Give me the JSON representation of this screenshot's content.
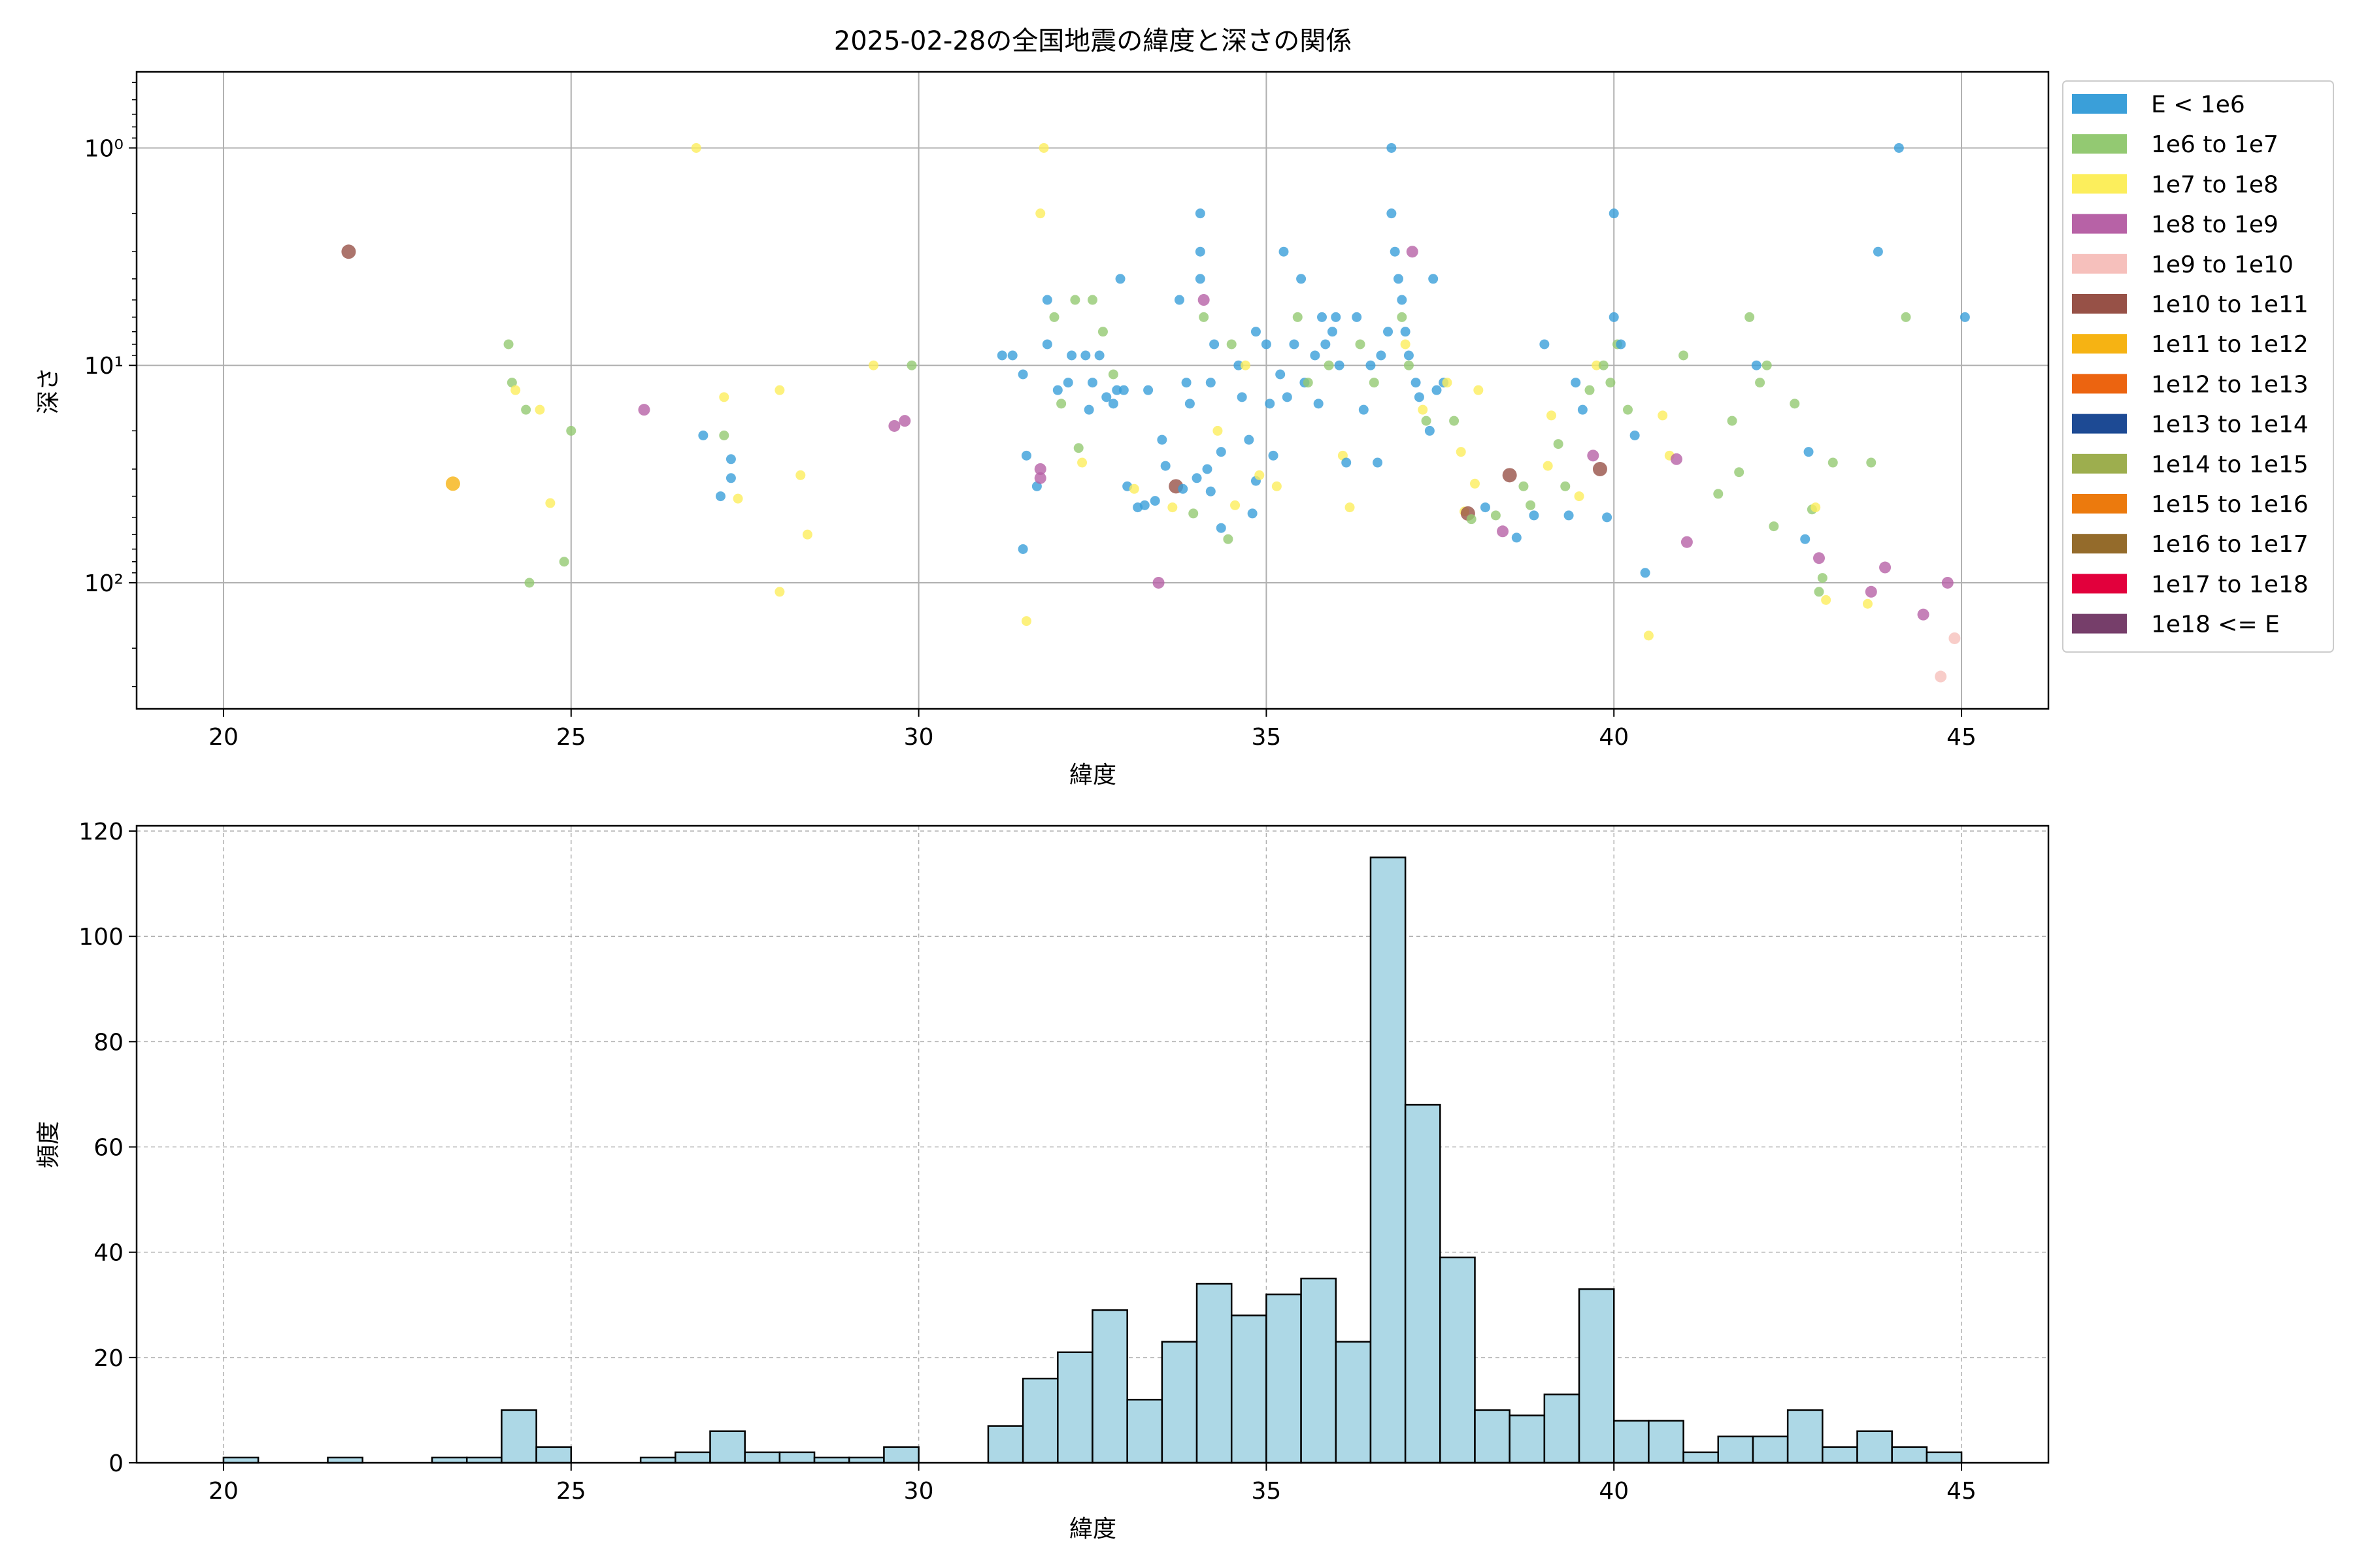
{
  "chart_data": [
    {
      "type": "scatter",
      "title": "2025-02-28の全国地震の緯度と深さの関係",
      "xlabel": "緯度",
      "ylabel": "深さ",
      "xlim": [
        18.75,
        46.25
      ],
      "ylim_log10": [
        -0.35,
        2.58
      ],
      "y_axis": "log, inverted",
      "x_ticks": [
        "20",
        "25",
        "30",
        "35",
        "40",
        "45"
      ],
      "x_tick_values": [
        20,
        25,
        30,
        35,
        40,
        45
      ],
      "y_ticks": [
        "10⁰",
        "10¹",
        "10²"
      ],
      "y_tick_values": [
        1,
        10,
        100
      ],
      "grid": true,
      "legend_position": "outside-right",
      "legend": [
        {
          "label": "E < 1e6",
          "color": "#3a9fd9"
        },
        {
          "label": "1e6 to 1e7",
          "color": "#93c972"
        },
        {
          "label": "1e7 to 1e8",
          "color": "#fcee5c"
        },
        {
          "label": "1e8 to 1e9",
          "color": "#b762a6"
        },
        {
          "label": "1e9 to 1e10",
          "color": "#f6c0bc"
        },
        {
          "label": "1e10 to 1e11",
          "color": "#975147"
        },
        {
          "label": "1e11 to 1e12",
          "color": "#f6b313"
        },
        {
          "label": "1e12 to 1e13",
          "color": "#ec6410"
        },
        {
          "label": "1e13 to 1e14",
          "color": "#1d4a94"
        },
        {
          "label": "1e14 to 1e15",
          "color": "#9dae4e"
        },
        {
          "label": "1e15 to 1e16",
          "color": "#ec7a0d"
        },
        {
          "label": "1e16 to 1e17",
          "color": "#946b2b"
        },
        {
          "label": "1e17 to 1e18",
          "color": "#e2003c"
        },
        {
          "label": "1e18 <= E",
          "color": "#763e6a"
        }
      ],
      "points": [
        [
          21.8,
          3,
          5
        ],
        [
          23.3,
          35,
          6
        ],
        [
          24.1,
          8,
          1
        ],
        [
          24.15,
          12,
          1
        ],
        [
          24.2,
          13,
          2
        ],
        [
          24.35,
          16,
          1
        ],
        [
          24.55,
          16,
          2
        ],
        [
          24.7,
          43,
          2
        ],
        [
          24.9,
          80,
          1
        ],
        [
          24.4,
          100,
          1
        ],
        [
          25.0,
          20,
          1
        ],
        [
          26.05,
          16,
          3
        ],
        [
          26.8,
          1,
          2
        ],
        [
          26.9,
          21,
          0
        ],
        [
          27.2,
          14,
          2
        ],
        [
          27.2,
          21,
          1
        ],
        [
          27.3,
          27,
          0
        ],
        [
          27.3,
          33,
          0
        ],
        [
          27.15,
          40,
          0
        ],
        [
          27.4,
          41,
          2
        ],
        [
          28.0,
          13,
          2
        ],
        [
          28.0,
          110,
          2
        ],
        [
          28.3,
          32,
          2
        ],
        [
          28.4,
          60,
          2
        ],
        [
          29.35,
          10,
          2
        ],
        [
          29.65,
          19,
          3
        ],
        [
          29.8,
          18,
          3
        ],
        [
          29.9,
          10,
          1
        ],
        [
          31.2,
          9,
          0
        ],
        [
          31.35,
          9,
          0
        ],
        [
          31.5,
          11,
          0
        ],
        [
          31.5,
          70,
          0
        ],
        [
          31.55,
          26,
          0
        ],
        [
          31.55,
          150,
          2
        ],
        [
          31.7,
          36,
          0
        ],
        [
          31.75,
          30,
          3
        ],
        [
          31.75,
          33,
          3
        ],
        [
          31.8,
          1,
          2
        ],
        [
          31.75,
          2,
          2
        ],
        [
          31.85,
          5,
          0
        ],
        [
          31.85,
          8,
          0
        ],
        [
          31.95,
          6,
          1
        ],
        [
          32.0,
          13,
          0
        ],
        [
          32.05,
          15,
          1
        ],
        [
          32.15,
          12,
          0
        ],
        [
          32.2,
          9,
          0
        ],
        [
          32.25,
          5,
          1
        ],
        [
          32.3,
          24,
          1
        ],
        [
          32.35,
          28,
          2
        ],
        [
          32.4,
          9,
          0
        ],
        [
          32.45,
          16,
          0
        ],
        [
          32.5,
          12,
          0
        ],
        [
          32.5,
          5,
          1
        ],
        [
          32.6,
          9,
          0
        ],
        [
          32.65,
          7,
          1
        ],
        [
          32.7,
          14,
          0
        ],
        [
          32.8,
          15,
          0
        ],
        [
          32.8,
          11,
          1
        ],
        [
          32.85,
          13,
          0
        ],
        [
          32.9,
          4,
          0
        ],
        [
          32.95,
          13,
          0
        ],
        [
          33.0,
          36,
          0
        ],
        [
          33.1,
          37,
          2
        ],
        [
          33.15,
          45,
          0
        ],
        [
          33.25,
          44,
          0
        ],
        [
          33.3,
          13,
          0
        ],
        [
          33.4,
          42,
          0
        ],
        [
          33.45,
          100,
          3
        ],
        [
          33.5,
          22,
          0
        ],
        [
          33.55,
          29,
          0
        ],
        [
          33.65,
          45,
          2
        ],
        [
          33.7,
          36,
          5
        ],
        [
          33.75,
          5,
          0
        ],
        [
          33.8,
          37,
          0
        ],
        [
          33.85,
          12,
          0
        ],
        [
          33.9,
          15,
          0
        ],
        [
          33.95,
          48,
          1
        ],
        [
          34.0,
          33,
          0
        ],
        [
          34.05,
          2,
          0
        ],
        [
          34.05,
          3,
          0
        ],
        [
          34.05,
          4,
          0
        ],
        [
          34.1,
          5,
          3
        ],
        [
          34.1,
          6,
          1
        ],
        [
          34.15,
          30,
          0
        ],
        [
          34.2,
          12,
          0
        ],
        [
          34.2,
          38,
          0
        ],
        [
          34.25,
          8,
          0
        ],
        [
          34.3,
          20,
          2
        ],
        [
          34.35,
          25,
          0
        ],
        [
          34.35,
          56,
          0
        ],
        [
          34.45,
          63,
          1
        ],
        [
          34.5,
          8,
          1
        ],
        [
          34.55,
          44,
          2
        ],
        [
          34.6,
          10,
          0
        ],
        [
          34.65,
          14,
          0
        ],
        [
          34.7,
          10,
          2
        ],
        [
          34.75,
          22,
          0
        ],
        [
          34.8,
          48,
          0
        ],
        [
          34.85,
          34,
          0
        ],
        [
          34.85,
          7,
          0
        ],
        [
          34.9,
          32,
          2
        ],
        [
          35.0,
          8,
          0
        ],
        [
          35.05,
          15,
          0
        ],
        [
          35.1,
          26,
          0
        ],
        [
          35.15,
          36,
          2
        ],
        [
          35.2,
          11,
          0
        ],
        [
          35.25,
          3,
          0
        ],
        [
          35.3,
          14,
          0
        ],
        [
          35.4,
          8,
          0
        ],
        [
          35.45,
          6,
          1
        ],
        [
          35.5,
          4,
          0
        ],
        [
          35.55,
          12,
          0
        ],
        [
          35.6,
          12,
          1
        ],
        [
          35.7,
          9,
          0
        ],
        [
          35.75,
          15,
          0
        ],
        [
          35.8,
          6,
          0
        ],
        [
          35.85,
          8,
          0
        ],
        [
          35.9,
          10,
          1
        ],
        [
          35.95,
          7,
          0
        ],
        [
          36.0,
          6,
          0
        ],
        [
          36.05,
          10,
          0
        ],
        [
          36.1,
          26,
          2
        ],
        [
          36.15,
          28,
          0
        ],
        [
          36.2,
          45,
          2
        ],
        [
          36.3,
          6,
          0
        ],
        [
          36.35,
          8,
          1
        ],
        [
          36.4,
          16,
          0
        ],
        [
          36.5,
          10,
          0
        ],
        [
          36.55,
          12,
          1
        ],
        [
          36.6,
          28,
          0
        ],
        [
          36.65,
          9,
          0
        ],
        [
          36.75,
          7,
          0
        ],
        [
          36.8,
          1,
          0
        ],
        [
          36.8,
          2,
          0
        ],
        [
          36.85,
          3,
          0
        ],
        [
          36.9,
          4,
          0
        ],
        [
          36.95,
          5,
          0
        ],
        [
          36.95,
          6,
          1
        ],
        [
          37.0,
          7,
          0
        ],
        [
          37.0,
          8,
          2
        ],
        [
          37.05,
          9,
          0
        ],
        [
          37.05,
          10,
          1
        ],
        [
          37.1,
          3,
          3
        ],
        [
          37.15,
          12,
          0
        ],
        [
          37.2,
          14,
          0
        ],
        [
          37.25,
          16,
          2
        ],
        [
          37.3,
          18,
          1
        ],
        [
          37.35,
          20,
          0
        ],
        [
          37.4,
          4,
          0
        ],
        [
          37.45,
          13,
          0
        ],
        [
          37.55,
          12,
          0
        ],
        [
          37.6,
          12,
          2
        ],
        [
          37.7,
          18,
          1
        ],
        [
          37.8,
          25,
          2
        ],
        [
          37.85,
          47,
          2
        ],
        [
          37.9,
          48,
          5
        ],
        [
          37.95,
          51,
          1
        ],
        [
          38.0,
          35,
          2
        ],
        [
          38.05,
          13,
          2
        ],
        [
          38.15,
          45,
          0
        ],
        [
          38.3,
          49,
          1
        ],
        [
          38.4,
          58,
          3
        ],
        [
          38.5,
          32,
          5
        ],
        [
          38.6,
          62,
          0
        ],
        [
          38.7,
          36,
          1
        ],
        [
          38.8,
          44,
          1
        ],
        [
          38.85,
          49,
          0
        ],
        [
          39.0,
          8,
          0
        ],
        [
          39.05,
          29,
          2
        ],
        [
          39.1,
          17,
          2
        ],
        [
          39.2,
          23,
          1
        ],
        [
          39.3,
          36,
          1
        ],
        [
          39.35,
          49,
          0
        ],
        [
          39.45,
          12,
          0
        ],
        [
          39.5,
          40,
          2
        ],
        [
          39.55,
          16,
          0
        ],
        [
          39.65,
          13,
          1
        ],
        [
          39.7,
          26,
          3
        ],
        [
          39.75,
          10,
          2
        ],
        [
          39.8,
          30,
          5
        ],
        [
          39.85,
          10,
          1
        ],
        [
          39.9,
          50,
          0
        ],
        [
          39.95,
          12,
          1
        ],
        [
          40.0,
          2,
          0
        ],
        [
          40.0,
          6,
          0
        ],
        [
          40.05,
          8,
          1
        ],
        [
          40.1,
          8,
          0
        ],
        [
          40.2,
          16,
          1
        ],
        [
          40.3,
          21,
          0
        ],
        [
          40.45,
          90,
          0
        ],
        [
          40.5,
          175,
          2
        ],
        [
          40.7,
          17,
          2
        ],
        [
          40.8,
          26,
          2
        ],
        [
          40.9,
          27,
          3
        ],
        [
          41.0,
          9,
          1
        ],
        [
          41.05,
          65,
          3
        ],
        [
          41.5,
          39,
          1
        ],
        [
          41.7,
          18,
          1
        ],
        [
          41.8,
          31,
          1
        ],
        [
          41.95,
          6,
          1
        ],
        [
          42.05,
          10,
          0
        ],
        [
          42.1,
          12,
          1
        ],
        [
          42.2,
          10,
          1
        ],
        [
          42.3,
          55,
          1
        ],
        [
          42.6,
          15,
          1
        ],
        [
          42.75,
          63,
          0
        ],
        [
          42.8,
          25,
          0
        ],
        [
          42.85,
          46,
          1
        ],
        [
          42.9,
          45,
          2
        ],
        [
          42.95,
          77,
          3
        ],
        [
          42.95,
          110,
          1
        ],
        [
          43.0,
          95,
          1
        ],
        [
          43.05,
          120,
          2
        ],
        [
          43.15,
          28,
          1
        ],
        [
          43.65,
          125,
          2
        ],
        [
          43.7,
          110,
          3
        ],
        [
          43.7,
          28,
          1
        ],
        [
          43.8,
          3,
          0
        ],
        [
          43.9,
          85,
          3
        ],
        [
          44.1,
          1,
          0
        ],
        [
          44.2,
          6,
          1
        ],
        [
          44.45,
          140,
          3
        ],
        [
          44.7,
          270,
          4
        ],
        [
          44.8,
          100,
          3
        ],
        [
          44.9,
          180,
          4
        ],
        [
          45.05,
          6,
          0
        ]
      ]
    },
    {
      "type": "bar",
      "title": "",
      "xlabel": "緯度",
      "ylabel": "頻度",
      "xlim": [
        18.75,
        46.25
      ],
      "ylim": [
        0,
        121
      ],
      "x_ticks": [
        "20",
        "25",
        "30",
        "35",
        "40",
        "45"
      ],
      "x_tick_values": [
        20,
        25,
        30,
        35,
        40,
        45
      ],
      "y_ticks": [
        "0",
        "20",
        "40",
        "60",
        "80",
        "100",
        "120"
      ],
      "y_tick_values": [
        0,
        20,
        40,
        60,
        80,
        100,
        120
      ],
      "bin_start": 20,
      "bin_width": 0.5,
      "values": [
        1,
        0,
        0,
        1,
        0,
        0,
        1,
        1,
        10,
        3,
        0,
        0,
        1,
        2,
        6,
        2,
        2,
        1,
        1,
        3,
        0,
        0,
        7,
        16,
        21,
        29,
        12,
        23,
        34,
        28,
        32,
        35,
        23,
        115,
        68,
        39,
        10,
        9,
        13,
        33,
        8,
        8,
        2,
        5,
        5,
        10,
        3,
        6,
        3,
        2
      ],
      "bar_color": "#add8e6",
      "edge_color": "#000000",
      "grid": true,
      "grid_style": "dashed"
    }
  ]
}
